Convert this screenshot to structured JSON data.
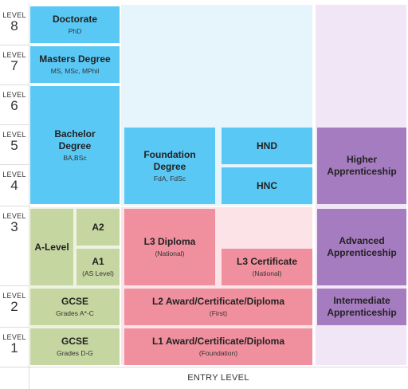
{
  "level_word": "LEVEL",
  "levels": [
    "8",
    "7",
    "6",
    "5",
    "4",
    "3",
    "2",
    "1"
  ],
  "entry_level": "ENTRY LEVEL",
  "blocks": {
    "doctorate": {
      "title": "Doctorate",
      "sub": "PhD"
    },
    "masters": {
      "title": "Masters Degree",
      "sub": "MS, MSc, MPhil"
    },
    "bachelor": {
      "title": "Bachelor Degree",
      "sub": "BA,BSc"
    },
    "foundation": {
      "title": "Foundation Degree",
      "sub": "FdA, FdSc"
    },
    "hnd": {
      "title": "HND"
    },
    "hnc": {
      "title": "HNC"
    },
    "higher_app": {
      "title": "Higher Apprenticeship"
    },
    "a_level": {
      "title": "A-Level"
    },
    "a2": {
      "title": "A2"
    },
    "a1": {
      "title": "A1",
      "sub": "(AS Level)"
    },
    "l3_diploma": {
      "title": "L3 Diploma",
      "sub": "(National)"
    },
    "l3_certificate": {
      "title": "L3 Certificate",
      "sub": "(National)"
    },
    "advanced_app": {
      "title": "Advanced Apprenticeship"
    },
    "gcse_2": {
      "title": "GCSE",
      "sub": "Grades A*-C"
    },
    "l2_award": {
      "title": "L2 Award/Certificate/Diploma",
      "sub": "(First)"
    },
    "intermediate_app": {
      "title": "Intermediate Apprenticeship"
    },
    "gcse_1": {
      "title": "GCSE",
      "sub": "Grades D-G"
    },
    "l1_award": {
      "title": "L1 Award/Certificate/Diploma",
      "sub": "(Foundation)"
    }
  },
  "colors": {
    "blue": "#5ac8f5",
    "green": "#c6d6a0",
    "pink": "#f0909e",
    "purple": "#a67cc0"
  }
}
